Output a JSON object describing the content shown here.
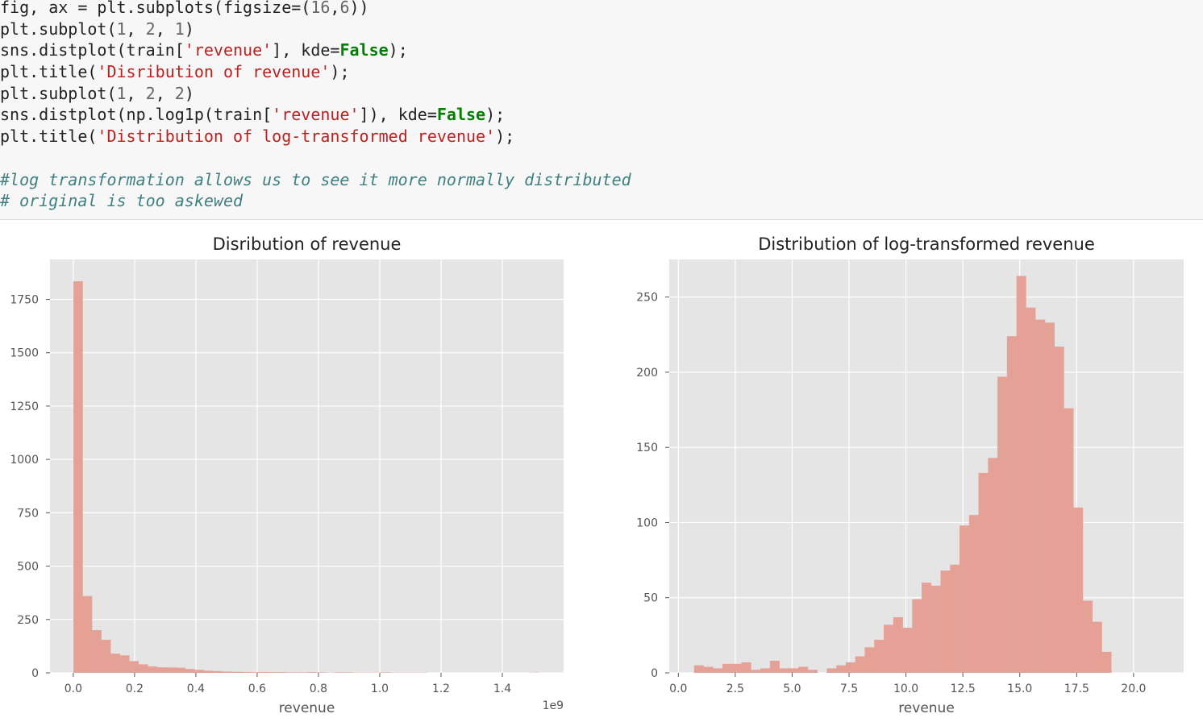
{
  "code_lines": [
    [
      {
        "t": "plain",
        "s": "fig, ax = plt.subplots(figsize=("
      },
      {
        "t": "num",
        "s": "16"
      },
      {
        "t": "plain",
        "s": ","
      },
      {
        "t": "num",
        "s": "6"
      },
      {
        "t": "plain",
        "s": "))"
      }
    ],
    [
      {
        "t": "plain",
        "s": "plt.subplot("
      },
      {
        "t": "num",
        "s": "1"
      },
      {
        "t": "plain",
        "s": ", "
      },
      {
        "t": "num",
        "s": "2"
      },
      {
        "t": "plain",
        "s": ", "
      },
      {
        "t": "num",
        "s": "1"
      },
      {
        "t": "plain",
        "s": ")"
      }
    ],
    [
      {
        "t": "plain",
        "s": "sns.distplot(train["
      },
      {
        "t": "str",
        "s": "'revenue'"
      },
      {
        "t": "plain",
        "s": "], kde="
      },
      {
        "t": "kw",
        "s": "False"
      },
      {
        "t": "plain",
        "s": ");"
      }
    ],
    [
      {
        "t": "plain",
        "s": "plt.title("
      },
      {
        "t": "str",
        "s": "'Disribution of revenue'"
      },
      {
        "t": "plain",
        "s": ");"
      }
    ],
    [
      {
        "t": "plain",
        "s": "plt.subplot("
      },
      {
        "t": "num",
        "s": "1"
      },
      {
        "t": "plain",
        "s": ", "
      },
      {
        "t": "num",
        "s": "2"
      },
      {
        "t": "plain",
        "s": ", "
      },
      {
        "t": "num",
        "s": "2"
      },
      {
        "t": "plain",
        "s": ")"
      }
    ],
    [
      {
        "t": "plain",
        "s": "sns.distplot(np.log1p(train["
      },
      {
        "t": "str",
        "s": "'revenue'"
      },
      {
        "t": "plain",
        "s": "]), kde="
      },
      {
        "t": "kw",
        "s": "False"
      },
      {
        "t": "plain",
        "s": ");"
      }
    ],
    [
      {
        "t": "plain",
        "s": "plt.title("
      },
      {
        "t": "str",
        "s": "'Distribution of log-transformed revenue'"
      },
      {
        "t": "plain",
        "s": ");"
      }
    ],
    [],
    [
      {
        "t": "com",
        "s": "#log transformation allows us to see it more normally distributed"
      }
    ],
    [
      {
        "t": "com",
        "s": "# original is too askewed"
      }
    ]
  ],
  "colors": {
    "bar": "#e5a195",
    "axes_bg": "#e5e5e5",
    "grid": "#ffffff",
    "tick_text": "#555555",
    "title_text": "#222222"
  },
  "chart_data": [
    {
      "type": "bar",
      "title": "Disribution of revenue",
      "xlabel": "revenue",
      "ylabel": "",
      "offset_text": "1e9",
      "xlim": [
        -0.076,
        1.6
      ],
      "ylim": [
        0,
        1937
      ],
      "xticks": [
        0.0,
        0.2,
        0.4,
        0.6,
        0.8,
        1.0,
        1.2,
        1.4
      ],
      "xtick_labels": [
        "0.0",
        "0.2",
        "0.4",
        "0.6",
        "0.8",
        "1.0",
        "1.2",
        "1.4"
      ],
      "yticks": [
        0,
        250,
        500,
        750,
        1000,
        1250,
        1500,
        1750
      ],
      "ytick_labels": [
        "0",
        "250",
        "500",
        "750",
        "1000",
        "1250",
        "1500",
        "1750"
      ],
      "bin_start": 0.0,
      "bin_width": 0.0304,
      "values": [
        1835,
        360,
        200,
        155,
        90,
        82,
        55,
        40,
        30,
        26,
        25,
        24,
        18,
        14,
        10,
        8,
        6,
        5,
        4,
        3,
        4,
        3,
        3,
        2,
        2,
        3,
        2,
        1,
        2,
        2,
        1,
        1,
        1,
        2,
        1,
        1,
        1,
        1,
        0,
        0,
        0,
        0,
        0,
        0,
        0,
        0,
        0,
        0,
        0,
        1
      ]
    },
    {
      "type": "bar",
      "title": "Distribution of log-transformed revenue",
      "xlabel": "revenue",
      "ylabel": "",
      "xlim": [
        -0.4,
        22.2
      ],
      "ylim": [
        0,
        275
      ],
      "xticks": [
        0.0,
        2.5,
        5.0,
        7.5,
        10.0,
        12.5,
        15.0,
        17.5,
        20.0
      ],
      "xtick_labels": [
        "0.0",
        "2.5",
        "5.0",
        "7.5",
        "10.0",
        "12.5",
        "15.0",
        "17.5",
        "20.0"
      ],
      "yticks": [
        0,
        50,
        100,
        150,
        200,
        250
      ],
      "ytick_labels": [
        "0",
        "50",
        "100",
        "150",
        "200",
        "250"
      ],
      "bin_start": 0.69,
      "bin_width": 0.4166,
      "values": [
        5,
        4,
        3,
        6,
        6,
        7,
        2,
        3,
        8,
        3,
        3,
        4,
        2,
        0,
        3,
        5,
        7,
        11,
        17,
        22,
        32,
        37,
        30,
        49,
        60,
        58,
        68,
        72,
        98,
        105,
        133,
        143,
        197,
        224,
        264,
        243,
        235,
        233,
        217,
        176,
        110,
        48,
        34,
        14,
        0
      ]
    }
  ]
}
